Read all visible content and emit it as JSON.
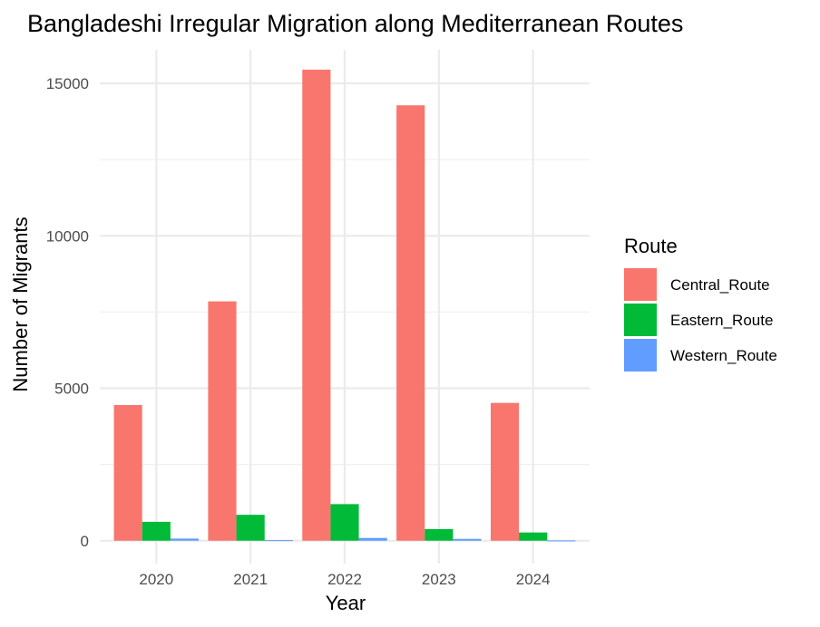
{
  "chart_data": {
    "type": "bar",
    "title": "Bangladeshi Irregular Migration along Mediterranean Routes",
    "xlabel": "Year",
    "ylabel": "Number of Migrants",
    "categories": [
      "2020",
      "2021",
      "2022",
      "2023",
      "2024"
    ],
    "series": [
      {
        "name": "Central_Route",
        "color": "#F8766D",
        "values": [
          4450,
          7850,
          15450,
          14280,
          4520
        ]
      },
      {
        "name": "Eastern_Route",
        "color": "#00BA38",
        "values": [
          620,
          850,
          1200,
          380,
          270
        ]
      },
      {
        "name": "Western_Route",
        "color": "#619CFF",
        "values": [
          70,
          20,
          90,
          60,
          10
        ]
      }
    ],
    "ylim": [
      -750,
      16100
    ],
    "yticks": [
      0,
      5000,
      10000,
      15000
    ],
    "y_minor_ticks": [
      2500,
      7500,
      12500
    ],
    "grid": true,
    "legend": {
      "title": "Route",
      "position": "right"
    }
  }
}
